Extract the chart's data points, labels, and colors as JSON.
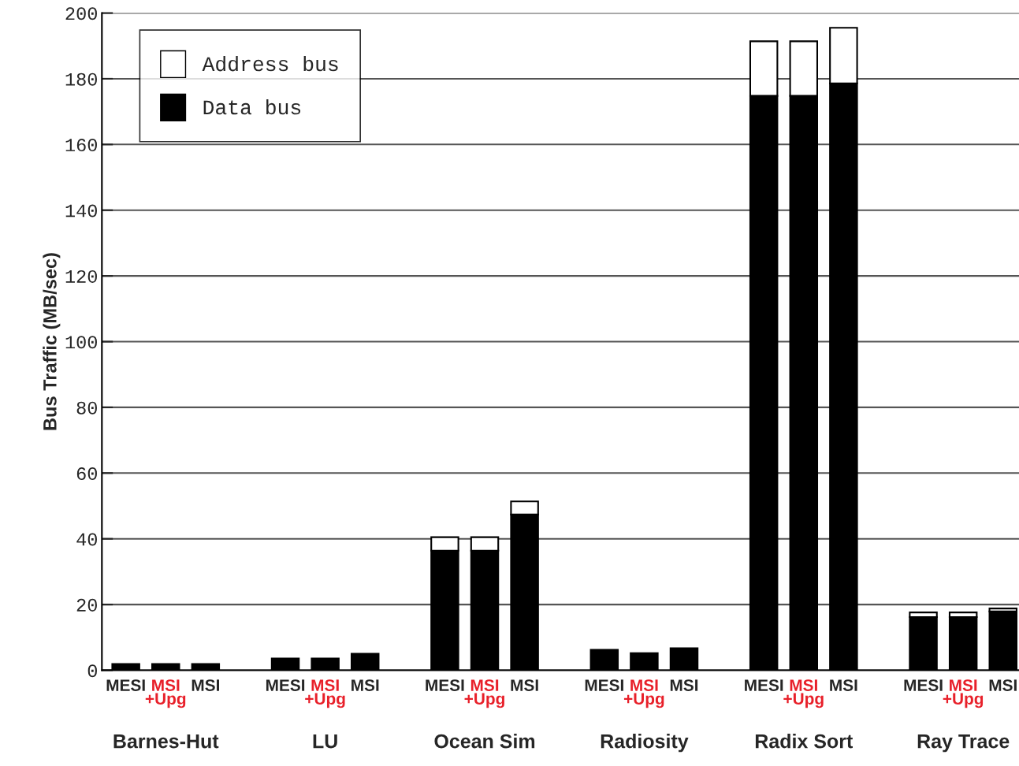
{
  "chart_data": {
    "type": "bar",
    "stacked": true,
    "ylabel": "Bus Traffic (MB/sec)",
    "categories": [
      "MESI",
      "MSI\n+Upg",
      "MSI",
      null,
      "MESI",
      "MSI\n+Upg",
      "MSI",
      null,
      "MESI",
      "MSI\n+Upg",
      "MSI",
      null,
      "MESI",
      "MSI\n+Upg",
      "MSI",
      null,
      "MESI",
      "MSI\n+Upg",
      "MSI",
      null,
      "MESI",
      "MSI\n+Upg",
      "MSI"
    ],
    "series": [
      {
        "name": "Data bus",
        "color": "#000000",
        "values": [
          1.9,
          1.9,
          1.9,
          null,
          3.6,
          3.6,
          5,
          null,
          36.4,
          36.4,
          47.4,
          null,
          6.2,
          5.2,
          6.7,
          null,
          174.8,
          174.8,
          178.6,
          null,
          16.2,
          16.2,
          17.9
        ]
      },
      {
        "name": "Address bus",
        "color": "#ffffff",
        "values": [
          null,
          null,
          null,
          null,
          null,
          null,
          null,
          null,
          4.1,
          4.1,
          4,
          null,
          null,
          null,
          null,
          null,
          16.6,
          16.6,
          16.9,
          null,
          1.4,
          1.4,
          0.9
        ]
      }
    ],
    "annotations": [
      "Barnes-Hut",
      "LU",
      "Ocean Sim",
      "Radiosity",
      "Radix Sort",
      "Ray Trace"
    ],
    "ylim": [
      0,
      200
    ],
    "yticks": [
      0,
      20,
      40,
      60,
      80,
      100,
      120,
      140,
      160,
      180,
      200
    ],
    "grid": "y",
    "legend": "top left"
  }
}
